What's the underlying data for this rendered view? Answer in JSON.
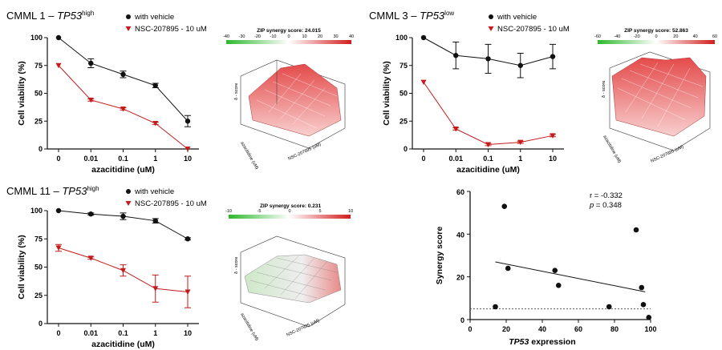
{
  "figure": "CMML drug combination viability and synergy panels",
  "colors": {
    "vehicle": "#111111",
    "nsc": "#c41a1a",
    "axis": "#111111"
  },
  "chart_data": [
    {
      "id": "cmml1",
      "type": "line",
      "title_prefix": "CMML 1 – ",
      "title_gene": "TP53",
      "title_sup": "high",
      "xlabel": "azacitidine (uM)",
      "ylabel": "Cell viability (%)",
      "categories": [
        "0",
        "0.01",
        "0.1",
        "1",
        "10"
      ],
      "ylim": [
        0,
        100
      ],
      "yticks": [
        "0",
        "25",
        "50",
        "75",
        "100"
      ],
      "legend": "top-right",
      "series": [
        {
          "name": "with vehicle",
          "marker": "circle",
          "values": [
            100,
            77,
            67,
            57,
            25
          ],
          "errors": [
            0,
            4,
            3,
            2,
            5
          ]
        },
        {
          "name": "NSC-207895 - 10 uM",
          "marker": "triangle",
          "values": [
            75,
            44,
            36,
            23,
            0
          ],
          "errors": [
            0,
            1,
            1,
            1,
            0
          ]
        }
      ]
    },
    {
      "id": "cmml3",
      "type": "line",
      "title_prefix": "CMML 3 – ",
      "title_gene": "TP53",
      "title_sup": "low",
      "xlabel": "azacitidine (uM)",
      "ylabel": "Cell viability (%)",
      "categories": [
        "0",
        "0.01",
        "0.1",
        "1",
        "10"
      ],
      "ylim": [
        0,
        100
      ],
      "yticks": [
        "0",
        "25",
        "50",
        "75",
        "100"
      ],
      "legend": "top-right",
      "series": [
        {
          "name": "with vehicle",
          "marker": "circle",
          "values": [
            100,
            84,
            81,
            75,
            83
          ],
          "errors": [
            0,
            12,
            13,
            11,
            11
          ]
        },
        {
          "name": "NSC-207895 - 10 uM",
          "marker": "triangle",
          "values": [
            60,
            18,
            4,
            6,
            12
          ],
          "errors": [
            0,
            1,
            1,
            1,
            1
          ]
        }
      ]
    },
    {
      "id": "cmml11",
      "type": "line",
      "title_prefix": "CMML 11 – ",
      "title_gene": "TP53",
      "title_sup": "high",
      "xlabel": "azacitidine (uM)",
      "ylabel": "Cell viability (%)",
      "categories": [
        "0",
        "0.01",
        "0.1",
        "1",
        "10"
      ],
      "ylim": [
        0,
        100
      ],
      "yticks": [
        "0",
        "25",
        "50",
        "75",
        "100"
      ],
      "legend": "top-right",
      "series": [
        {
          "name": "with vehicle",
          "marker": "circle",
          "values": [
            100,
            97,
            95,
            91,
            75
          ],
          "errors": [
            0,
            1,
            3,
            2,
            1
          ]
        },
        {
          "name": "NSC-207895 - 10 uM",
          "marker": "triangle",
          "values": [
            67,
            58,
            47,
            31,
            28
          ],
          "errors": [
            3,
            1,
            5,
            12,
            14
          ]
        }
      ]
    },
    {
      "id": "scatter",
      "type": "scatter",
      "xlabel_gene": "TP53",
      "xlabel_rest": " expression",
      "ylabel": "Synergy score",
      "xlim": [
        0,
        100
      ],
      "ylim": [
        0,
        60
      ],
      "xticks": [
        "0",
        "20",
        "40",
        "60",
        "80",
        "100"
      ],
      "yticks": [
        "0",
        "20",
        "40",
        "60"
      ],
      "stat_r": "r = -0.332",
      "stat_p_label": "p",
      "stat_p_value": " = 0.348",
      "points": [
        [
          14,
          6
        ],
        [
          19,
          53
        ],
        [
          21,
          24
        ],
        [
          47,
          23
        ],
        [
          49,
          16
        ],
        [
          77,
          6
        ],
        [
          92,
          42
        ],
        [
          95,
          15
        ],
        [
          96,
          7
        ],
        [
          99,
          1
        ]
      ],
      "fit": [
        [
          14,
          27
        ],
        [
          97,
          13
        ]
      ],
      "reference_y": 5
    }
  ],
  "synergy_maps": [
    {
      "id": "syn1",
      "label": "ZIP synergy score: 24.015",
      "scale": [
        "-40",
        "-30",
        "-20",
        "-10",
        "0",
        "10",
        "20",
        "30",
        "40"
      ],
      "zaxis": "δ - score",
      "xaxis": "NSC-207895 (uM)",
      "yaxis": "azacitidine (uM)"
    },
    {
      "id": "syn3",
      "label": "ZIP synergy score: 52.863",
      "scale": [
        "-60",
        "-40",
        "-20",
        "0",
        "20",
        "40",
        "60"
      ],
      "zaxis": "δ - score",
      "xaxis": "NSC-207895 (uM)",
      "yaxis": "azacitidine (uM)"
    },
    {
      "id": "syn11",
      "label": "ZIP synergy score: 0.231",
      "scale": [
        "-10",
        "-5",
        "0",
        "5",
        "10"
      ],
      "zaxis": "δ - score",
      "xaxis": "NSC-207895 (uM)",
      "yaxis": "azacitidine (uM)"
    }
  ]
}
